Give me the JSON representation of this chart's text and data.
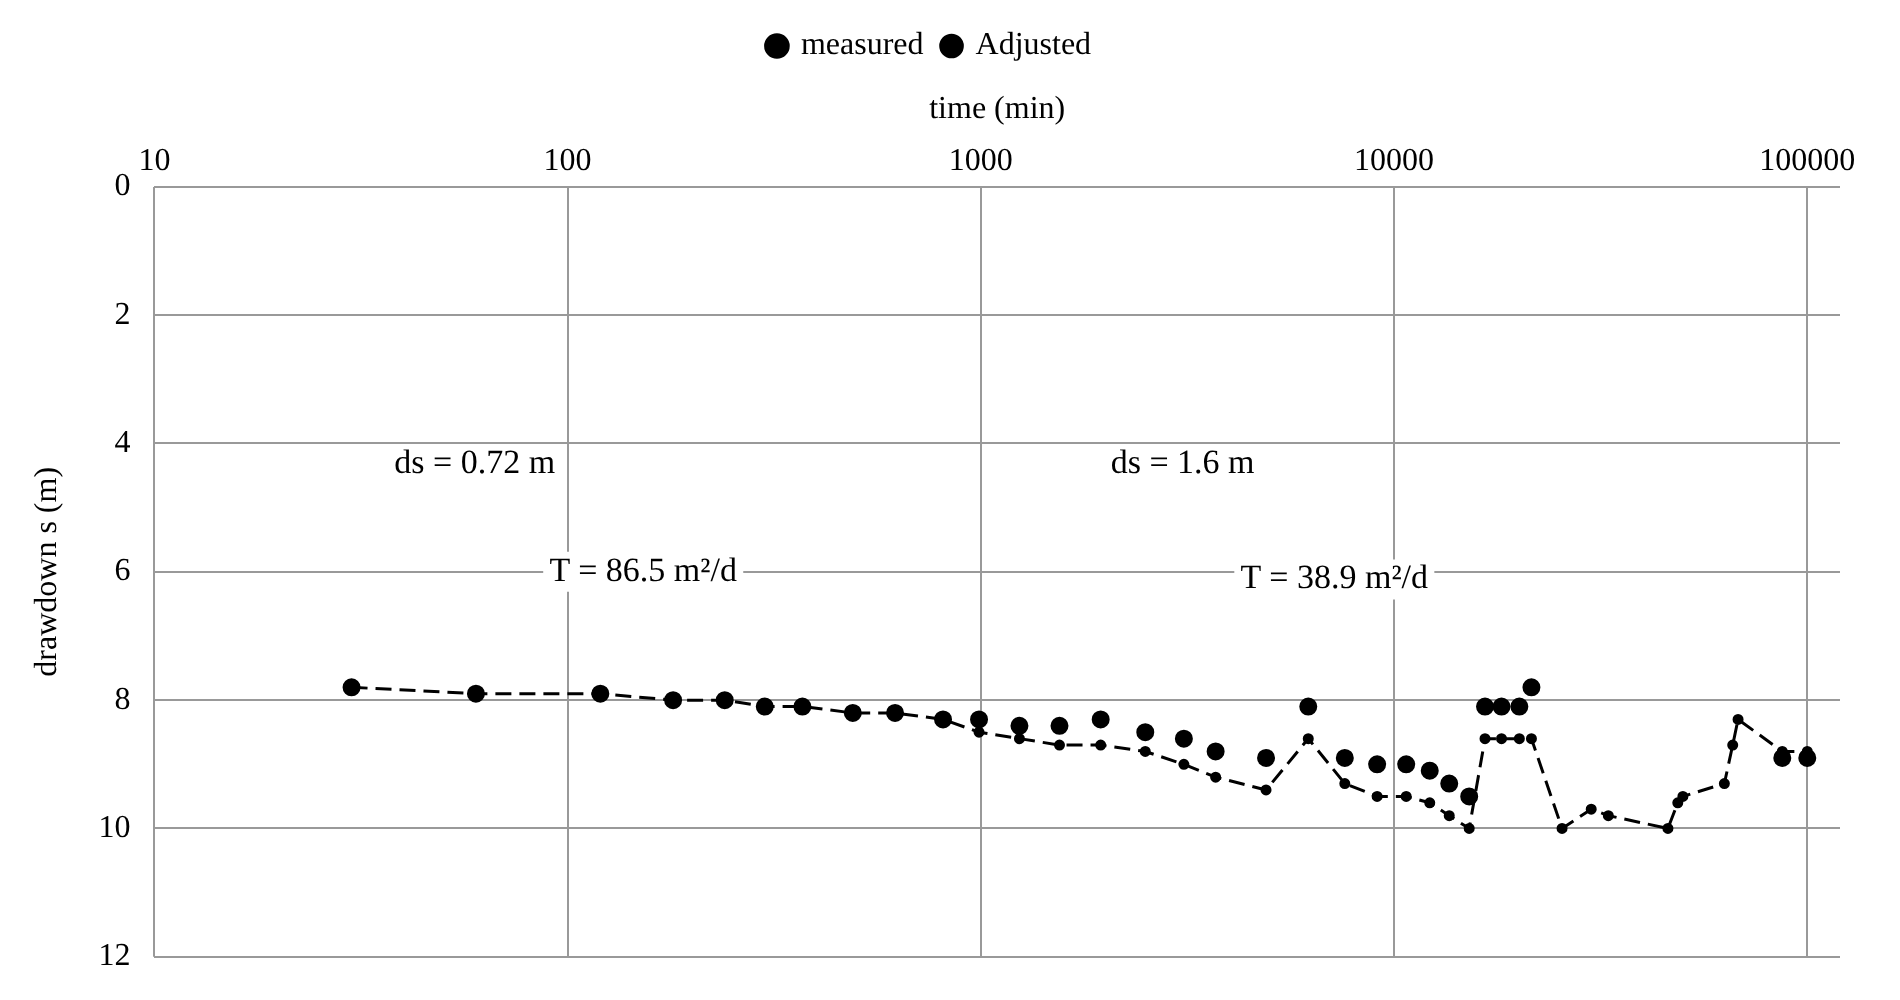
{
  "chart_data": {
    "type": "line",
    "xlabel": "time (min)",
    "ylabel": "drawdown s (m)",
    "log": "x",
    "grid": true,
    "legend": "top",
    "xlim": [
      10,
      120000
    ],
    "xticks": [
      10,
      100,
      1000,
      10000,
      100000
    ],
    "ylim": [
      12,
      0
    ],
    "yticks": [
      0,
      2,
      4,
      6,
      8,
      10,
      12
    ],
    "series": [
      {
        "name": "measured",
        "type": "line",
        "color": "#000000",
        "marker": "circle",
        "line_style": "dashed",
        "x": [
          30,
          60,
          120,
          180,
          240,
          300,
          370,
          490,
          620,
          810,
          990,
          1240,
          1550,
          1950,
          2500,
          3100,
          3700,
          4900,
          6200,
          7600,
          9100,
          10700,
          12200,
          13600,
          15200,
          16600,
          18200,
          20100,
          21500,
          25500,
          30000,
          33000,
          46000,
          48600,
          50000,
          63000,
          66000,
          68000,
          87000,
          100000
        ],
        "values": [
          7.8,
          7.9,
          7.9,
          8.0,
          8.0,
          8.1,
          8.1,
          8.2,
          8.2,
          8.3,
          8.5,
          8.6,
          8.7,
          8.7,
          8.8,
          9.0,
          9.2,
          9.4,
          8.6,
          9.3,
          9.5,
          9.5,
          9.6,
          9.8,
          10.0,
          8.6,
          8.6,
          8.6,
          8.6,
          10.0,
          9.7,
          9.8,
          10.0,
          9.6,
          9.5,
          9.3,
          8.7,
          8.3,
          8.8,
          8.8
        ]
      },
      {
        "name": "Adjusted",
        "type": "scatter",
        "color": "#000000",
        "marker": "circle",
        "x": [
          30,
          60,
          120,
          180,
          240,
          300,
          370,
          490,
          620,
          810,
          990,
          1240,
          1550,
          1950,
          2500,
          3100,
          3700,
          4900,
          6200,
          7600,
          9100,
          10700,
          12200,
          13600,
          15200,
          16600,
          18200,
          20100,
          21500,
          87000,
          100000
        ],
        "values": [
          7.8,
          7.9,
          7.9,
          8.0,
          8.0,
          8.1,
          8.1,
          8.2,
          8.2,
          8.3,
          8.3,
          8.4,
          8.4,
          8.3,
          8.5,
          8.6,
          8.8,
          8.9,
          8.1,
          8.9,
          9.0,
          9.0,
          9.1,
          9.3,
          9.5,
          8.1,
          8.1,
          8.1,
          7.8,
          8.9,
          8.9
        ]
      }
    ],
    "annotations": [
      "ds = 0.72 m",
      "T = 86.5 m²/d",
      "ds = 1.6 m",
      "T = 38.9 m²/d"
    ]
  }
}
